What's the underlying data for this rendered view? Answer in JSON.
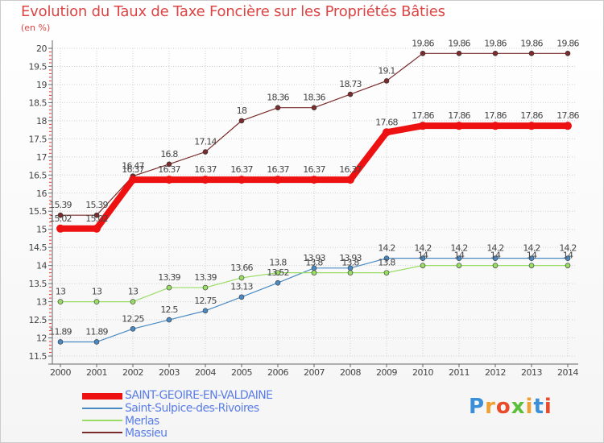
{
  "header": {
    "title": "Evolution du Taux de Taxe Foncière sur les Propriétés Bâties",
    "subtitle": "(en %)"
  },
  "logo": {
    "text": "Proxiti",
    "colors": [
      "#3a8fd8",
      "#f0a030",
      "#e84a2a",
      "#5cbf3a",
      "#f0a030",
      "#3a8fd8",
      "#e84a2a"
    ]
  },
  "chart_data": {
    "type": "line",
    "title": "Evolution du Taux de Taxe Foncière sur les Propriétés Bâties",
    "ylabel": "(en %)",
    "xlabel": "",
    "ylim": [
      11.5,
      20
    ],
    "y_ticks": [
      "11.5",
      "12",
      "12.5",
      "13",
      "13.5",
      "14",
      "14.5",
      "15",
      "15.5",
      "16",
      "16.5",
      "17",
      "17.5",
      "18",
      "18.5",
      "19",
      "19.5",
      "20"
    ],
    "grid": true,
    "legend_position": "bottom-left",
    "categories": [
      "2000",
      "2001",
      "2002",
      "2003",
      "2004",
      "2005",
      "2006",
      "2007",
      "2008",
      "2009",
      "2010",
      "2011",
      "2012",
      "2013",
      "2014"
    ],
    "series": [
      {
        "name": "Massieu",
        "color": "#7a2b2b",
        "thick": false,
        "values": [
          15.39,
          15.39,
          16.47,
          16.8,
          17.14,
          18,
          18.36,
          18.36,
          18.73,
          19.1,
          19.86,
          19.86,
          19.86,
          19.86,
          19.86
        ],
        "labels": [
          "15.39",
          "15.39",
          "16.47",
          "16.8",
          "17.14",
          "18",
          "18.36",
          "18.36",
          "18.73",
          "19.1",
          "19.86",
          "19.86",
          "19.86",
          "19.86",
          "19.86"
        ]
      },
      {
        "name": "SAINT-GEOIRE-EN-VALDAINE",
        "color": "#ee1111",
        "thick": true,
        "values": [
          15.02,
          15.02,
          16.37,
          16.37,
          16.37,
          16.37,
          16.37,
          16.37,
          16.37,
          17.68,
          17.86,
          17.86,
          17.86,
          17.86,
          17.86
        ],
        "labels": [
          "15.02",
          "15.02",
          "16.37",
          "16.37",
          "16.37",
          "16.37",
          "16.37",
          "16.37",
          "16.37",
          "17.68",
          "17.86",
          "17.86",
          "17.86",
          "17.86",
          "17.86"
        ]
      },
      {
        "name": "Saint-Sulpice-des-Rivoires",
        "color": "#4a8ac4",
        "thick": false,
        "values": [
          11.89,
          11.89,
          12.25,
          12.5,
          12.75,
          13.13,
          13.52,
          13.93,
          13.93,
          14.2,
          14.2,
          14.2,
          14.2,
          14.2,
          14.2
        ],
        "labels": [
          "11.89",
          "11.89",
          "12.25",
          "12.5",
          "12.75",
          "13.13",
          "13.52",
          "13.93",
          "13.93",
          "14.2",
          "14.2",
          "14.2",
          "14.2",
          "14.2",
          "14.2"
        ]
      },
      {
        "name": "Merlas",
        "color": "#99dd66",
        "thick": false,
        "values": [
          13,
          13,
          13,
          13.39,
          13.39,
          13.66,
          13.8,
          13.8,
          13.8,
          13.8,
          14,
          14,
          14,
          14,
          14
        ],
        "labels": [
          "13",
          "13",
          "13",
          "13.39",
          "13.39",
          "13.66",
          "13.8",
          "13.8",
          "13.8",
          "13.8",
          "14",
          "14",
          "14",
          "14",
          "14"
        ]
      }
    ],
    "legend": [
      "SAINT-GEOIRE-EN-VALDAINE",
      "Saint-Sulpice-des-Rivoires",
      "Merlas",
      "Massieu"
    ]
  }
}
